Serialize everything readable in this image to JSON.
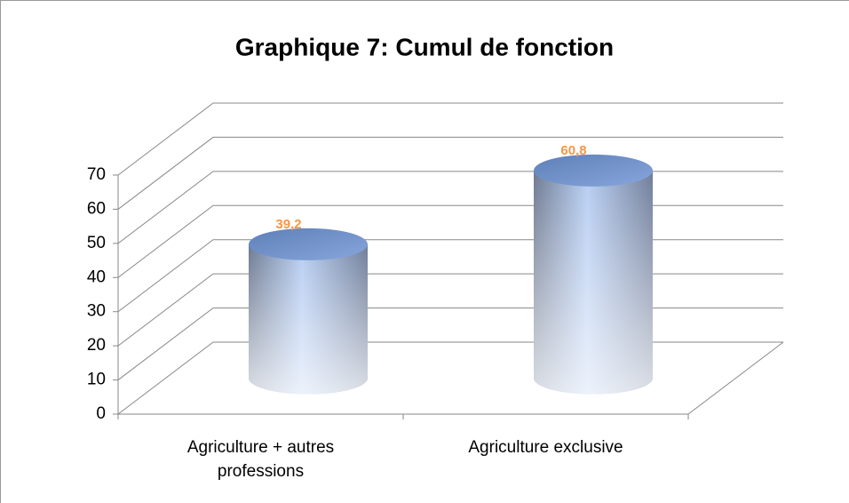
{
  "chart_data": {
    "type": "bar3d",
    "title": "Graphique 7: Cumul de fonction",
    "categories": [
      "Agriculture + autres professions",
      "Agriculture exclusive"
    ],
    "values": [
      39.2,
      60.8
    ],
    "value_labels": [
      "39,2",
      "60,8"
    ],
    "color": "#a9c4ee",
    "label_color": "#f79646",
    "ylim": [
      0,
      70
    ],
    "yticks": [
      0,
      10,
      20,
      30,
      40,
      50,
      60,
      70
    ],
    "grid": true
  }
}
